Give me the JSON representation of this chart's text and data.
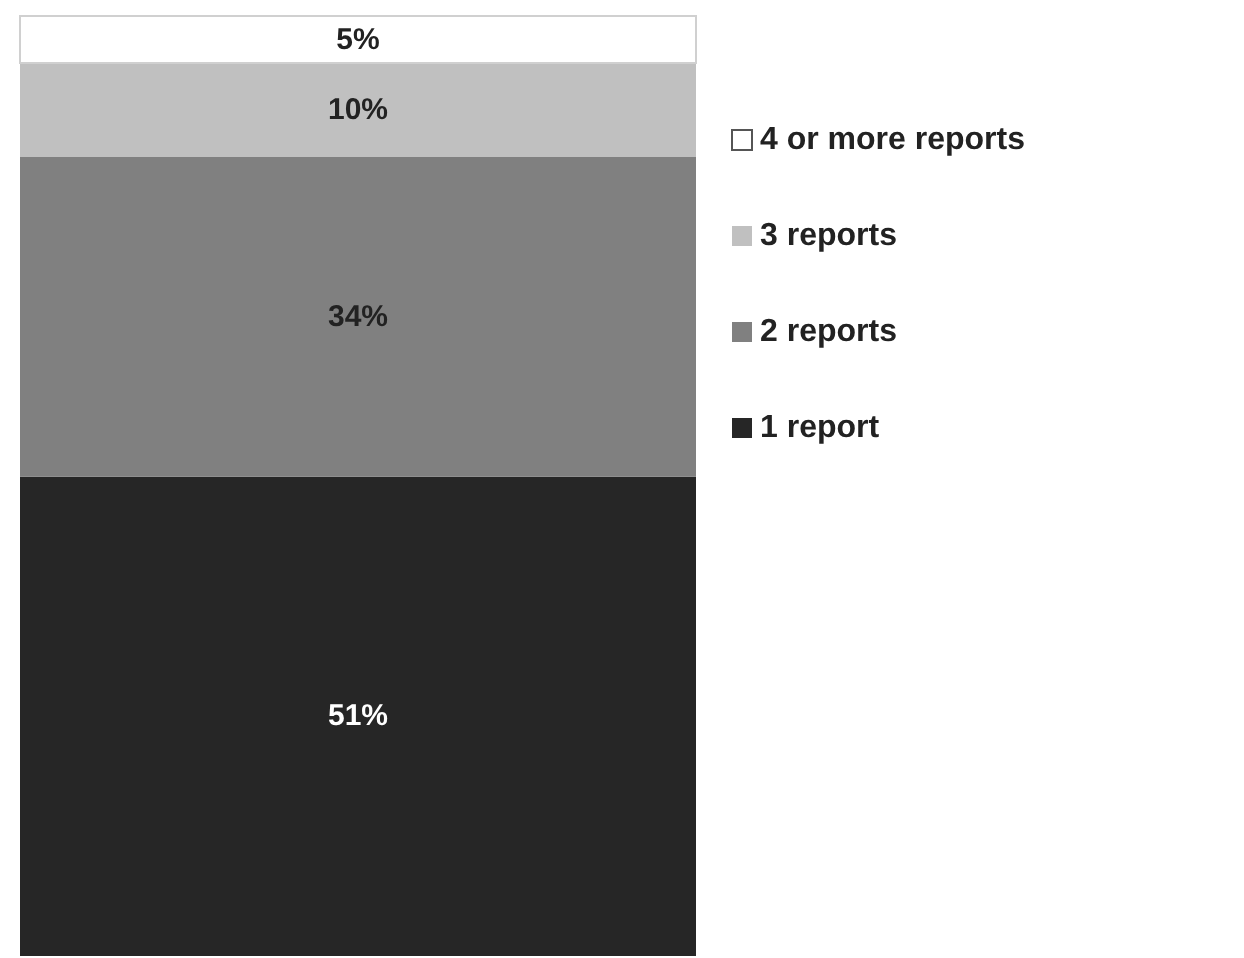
{
  "chart_data": {
    "type": "bar",
    "stacked": true,
    "categories": [
      null
    ],
    "ylim": [
      0,
      100
    ],
    "tick_labels": false,
    "legend": "right",
    "series": [
      {
        "name": "1 report",
        "color": "#262626",
        "values": [
          51
        ],
        "value_labels": [
          "51%"
        ]
      },
      {
        "name": "2 reports",
        "color": "#808080",
        "values": [
          34
        ],
        "value_labels": [
          "34%"
        ]
      },
      {
        "name": "3 reports",
        "color": "#c0c0c0",
        "values": [
          10
        ],
        "value_labels": [
          "10%"
        ]
      },
      {
        "name": "4 or more reports",
        "color": "#ffffff",
        "values": [
          5
        ],
        "value_labels": [
          "5%"
        ]
      }
    ]
  }
}
